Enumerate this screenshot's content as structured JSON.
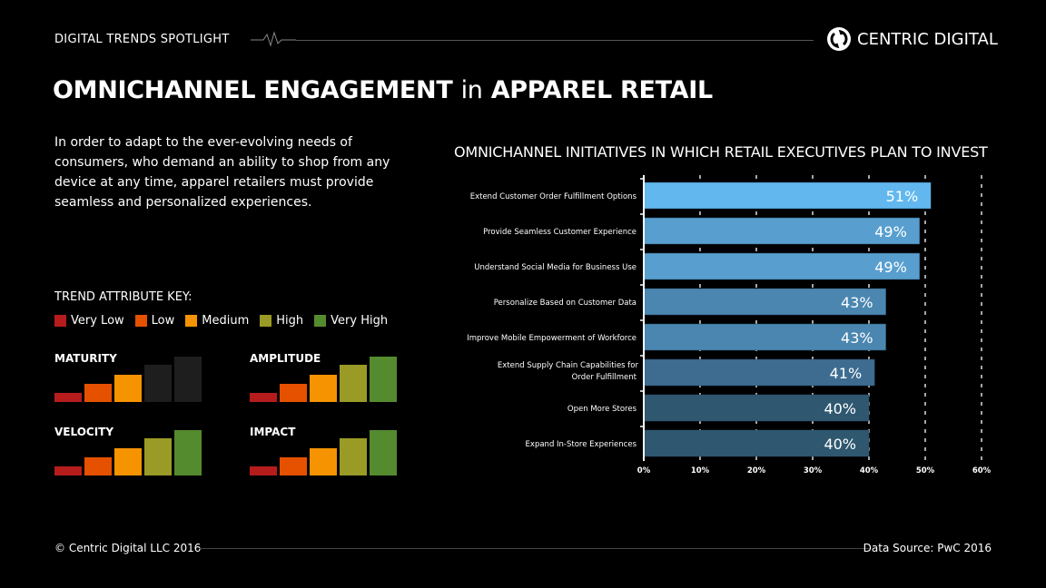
{
  "header": {
    "title": "DIGITAL TRENDS SPOTLIGHT",
    "brand": "CENTRIC DIGITAL"
  },
  "page": {
    "title_bold_1": "OMNICHANNEL ENGAGEMENT",
    "title_thin": "in",
    "title_bold_2": "APPAREL RETAIL",
    "intro": "In order to adapt to the ever-evolving needs of consumers, who demand an ability to shop from any device at any time, apparel retailers must provide seamless and personalized experiences."
  },
  "key": {
    "title": "TREND ATTRIBUTE KEY:",
    "levels": [
      {
        "label": "Very Low",
        "color": "#b71c1c"
      },
      {
        "label": "Low",
        "color": "#e65100"
      },
      {
        "label": "Medium",
        "color": "#f59300"
      },
      {
        "label": "High",
        "color": "#9a9a26"
      },
      {
        "label": "Very High",
        "color": "#558b2f"
      }
    ],
    "attributes": [
      {
        "name": "MATURITY",
        "level": 3
      },
      {
        "name": "AMPLITUDE",
        "level": 5
      },
      {
        "name": "VELOCITY",
        "level": 5
      },
      {
        "name": "IMPACT",
        "level": 5
      }
    ],
    "inactive_color": "#1e1e1e"
  },
  "chart_data": {
    "type": "bar",
    "orientation": "horizontal",
    "title": "OMNICHANNEL INITIATIVES IN WHICH RETAIL EXECUTIVES PLAN TO INVEST",
    "categories": [
      "Extend Customer Order Fulfillment Options",
      "Provide Seamless Customer Experience",
      "Understand Social Media for Business Use",
      "Personalize Based on Customer Data",
      "Improve Mobile Empowerment of Workforce",
      "Extend Supply Chain Capabilities for Order Fulfillment",
      "Open More Stores",
      "Expand In-Store Experiences"
    ],
    "values": [
      51,
      49,
      49,
      43,
      43,
      41,
      40,
      40
    ],
    "data_labels": [
      "51%",
      "49%",
      "49%",
      "43%",
      "43%",
      "41%",
      "40%",
      "40%"
    ],
    "colors": [
      "#62b8ee",
      "#589fcf",
      "#589fcf",
      "#4a86b0",
      "#4a86b0",
      "#3d6c90",
      "#2f5870",
      "#2f5870"
    ],
    "xlim": [
      0,
      60
    ],
    "xticks": [
      "0%",
      "10%",
      "20%",
      "30%",
      "40%",
      "50%",
      "60%"
    ],
    "grid": true
  },
  "footer": {
    "copyright": "© Centric Digital LLC 2016",
    "source": "Data Source: PwC 2016"
  }
}
